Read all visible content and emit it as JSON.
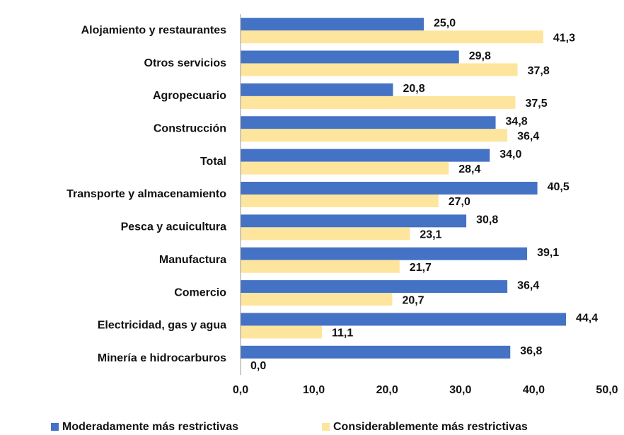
{
  "chart_data": {
    "type": "bar",
    "orientation": "horizontal",
    "categories": [
      "Alojamiento y restaurantes",
      "Otros servicios",
      "Agropecuario",
      "Construcción",
      "Total",
      "Transporte y almacenamiento",
      "Pesca y acuicultura",
      "Manufactura",
      "Comercio",
      "Electricidad, gas y agua",
      "Minería e hidrocarburos"
    ],
    "series": [
      {
        "name": "Moderadamente más restrictivas",
        "color": "#4472c4",
        "values": [
          25.0,
          29.8,
          20.8,
          34.8,
          34.0,
          40.5,
          30.8,
          39.1,
          36.4,
          44.4,
          36.8
        ],
        "value_labels": [
          "25,0",
          "29,8",
          "20,8",
          "34,8",
          "34,0",
          "40,5",
          "30,8",
          "39,1",
          "36,4",
          "44,4",
          "36,8"
        ]
      },
      {
        "name": "Considerablemente más restrictivas",
        "color": "#fde59e",
        "values": [
          41.3,
          37.8,
          37.5,
          36.4,
          28.4,
          27.0,
          23.1,
          21.7,
          20.7,
          11.1,
          0.0
        ],
        "value_labels": [
          "41,3",
          "37,8",
          "37,5",
          "36,4",
          "28,4",
          "27,0",
          "23,1",
          "21,7",
          "20,7",
          "11,1",
          "0,0"
        ]
      }
    ],
    "xlim": [
      0,
      50
    ],
    "xticks": [
      {
        "value": 0,
        "label": "0,0"
      },
      {
        "value": 10,
        "label": "10,0"
      },
      {
        "value": 20,
        "label": "20,0"
      },
      {
        "value": 30,
        "label": "30,0"
      },
      {
        "value": 40,
        "label": "40,0"
      },
      {
        "value": 50,
        "label": "50,0"
      }
    ],
    "legend": "bottom"
  }
}
